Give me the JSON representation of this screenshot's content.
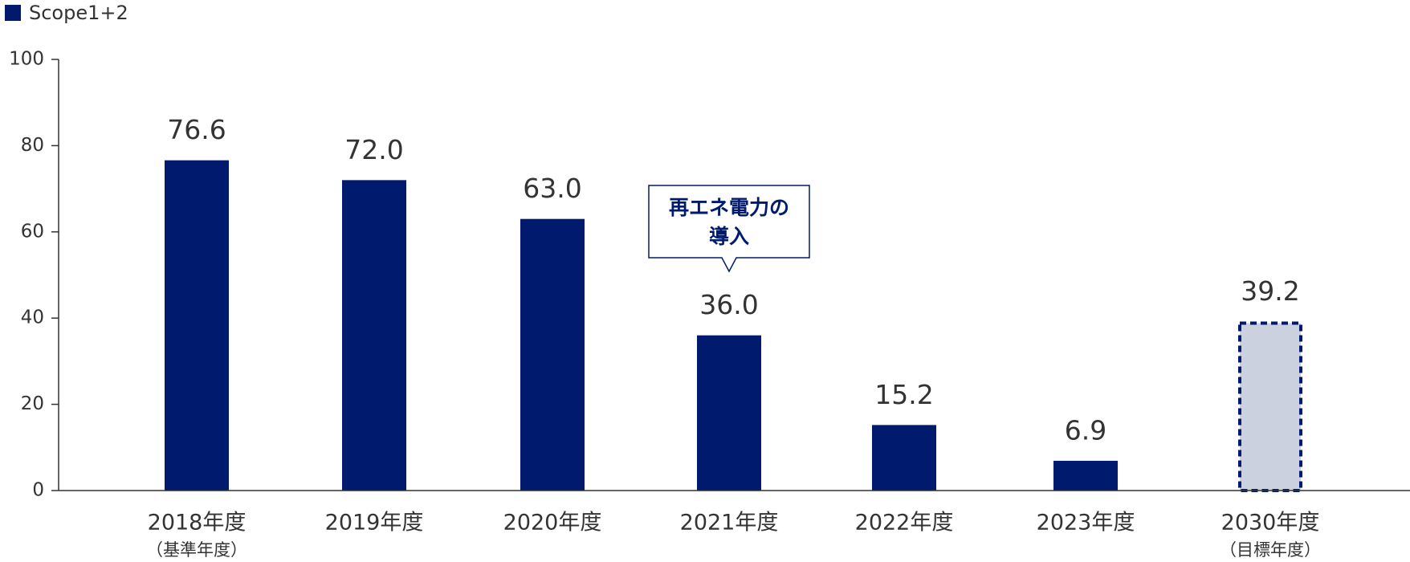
{
  "chart_data": {
    "type": "bar",
    "legend": [
      {
        "name": "Scope1+2",
        "color": "#001a6e"
      }
    ],
    "categories": [
      "2018年度",
      "2019年度",
      "2020年度",
      "2021年度",
      "2022年度",
      "2023年度",
      "2030年度"
    ],
    "sublabels": [
      "（基準年度）",
      null,
      null,
      null,
      null,
      null,
      "（目標年度）"
    ],
    "values": [
      76.6,
      72.0,
      63.0,
      36.0,
      15.2,
      6.9,
      39.2
    ],
    "value_labels": [
      "76.6",
      "72.0",
      "63.0",
      "36.0",
      "15.2",
      "6.9",
      "39.2"
    ],
    "colors": [
      "#001a6e",
      "#001a6e",
      "#001a6e",
      "#001a6e",
      "#001a6e",
      "#001a6e",
      "#ccd1e0"
    ],
    "dashed": [
      false,
      false,
      false,
      false,
      false,
      false,
      true
    ],
    "annotation": [
      "再エネ電力の",
      "導入"
    ],
    "ylim": [
      0,
      100
    ],
    "yticks": [
      0,
      20,
      40,
      60,
      80,
      100
    ],
    "grid": false
  }
}
